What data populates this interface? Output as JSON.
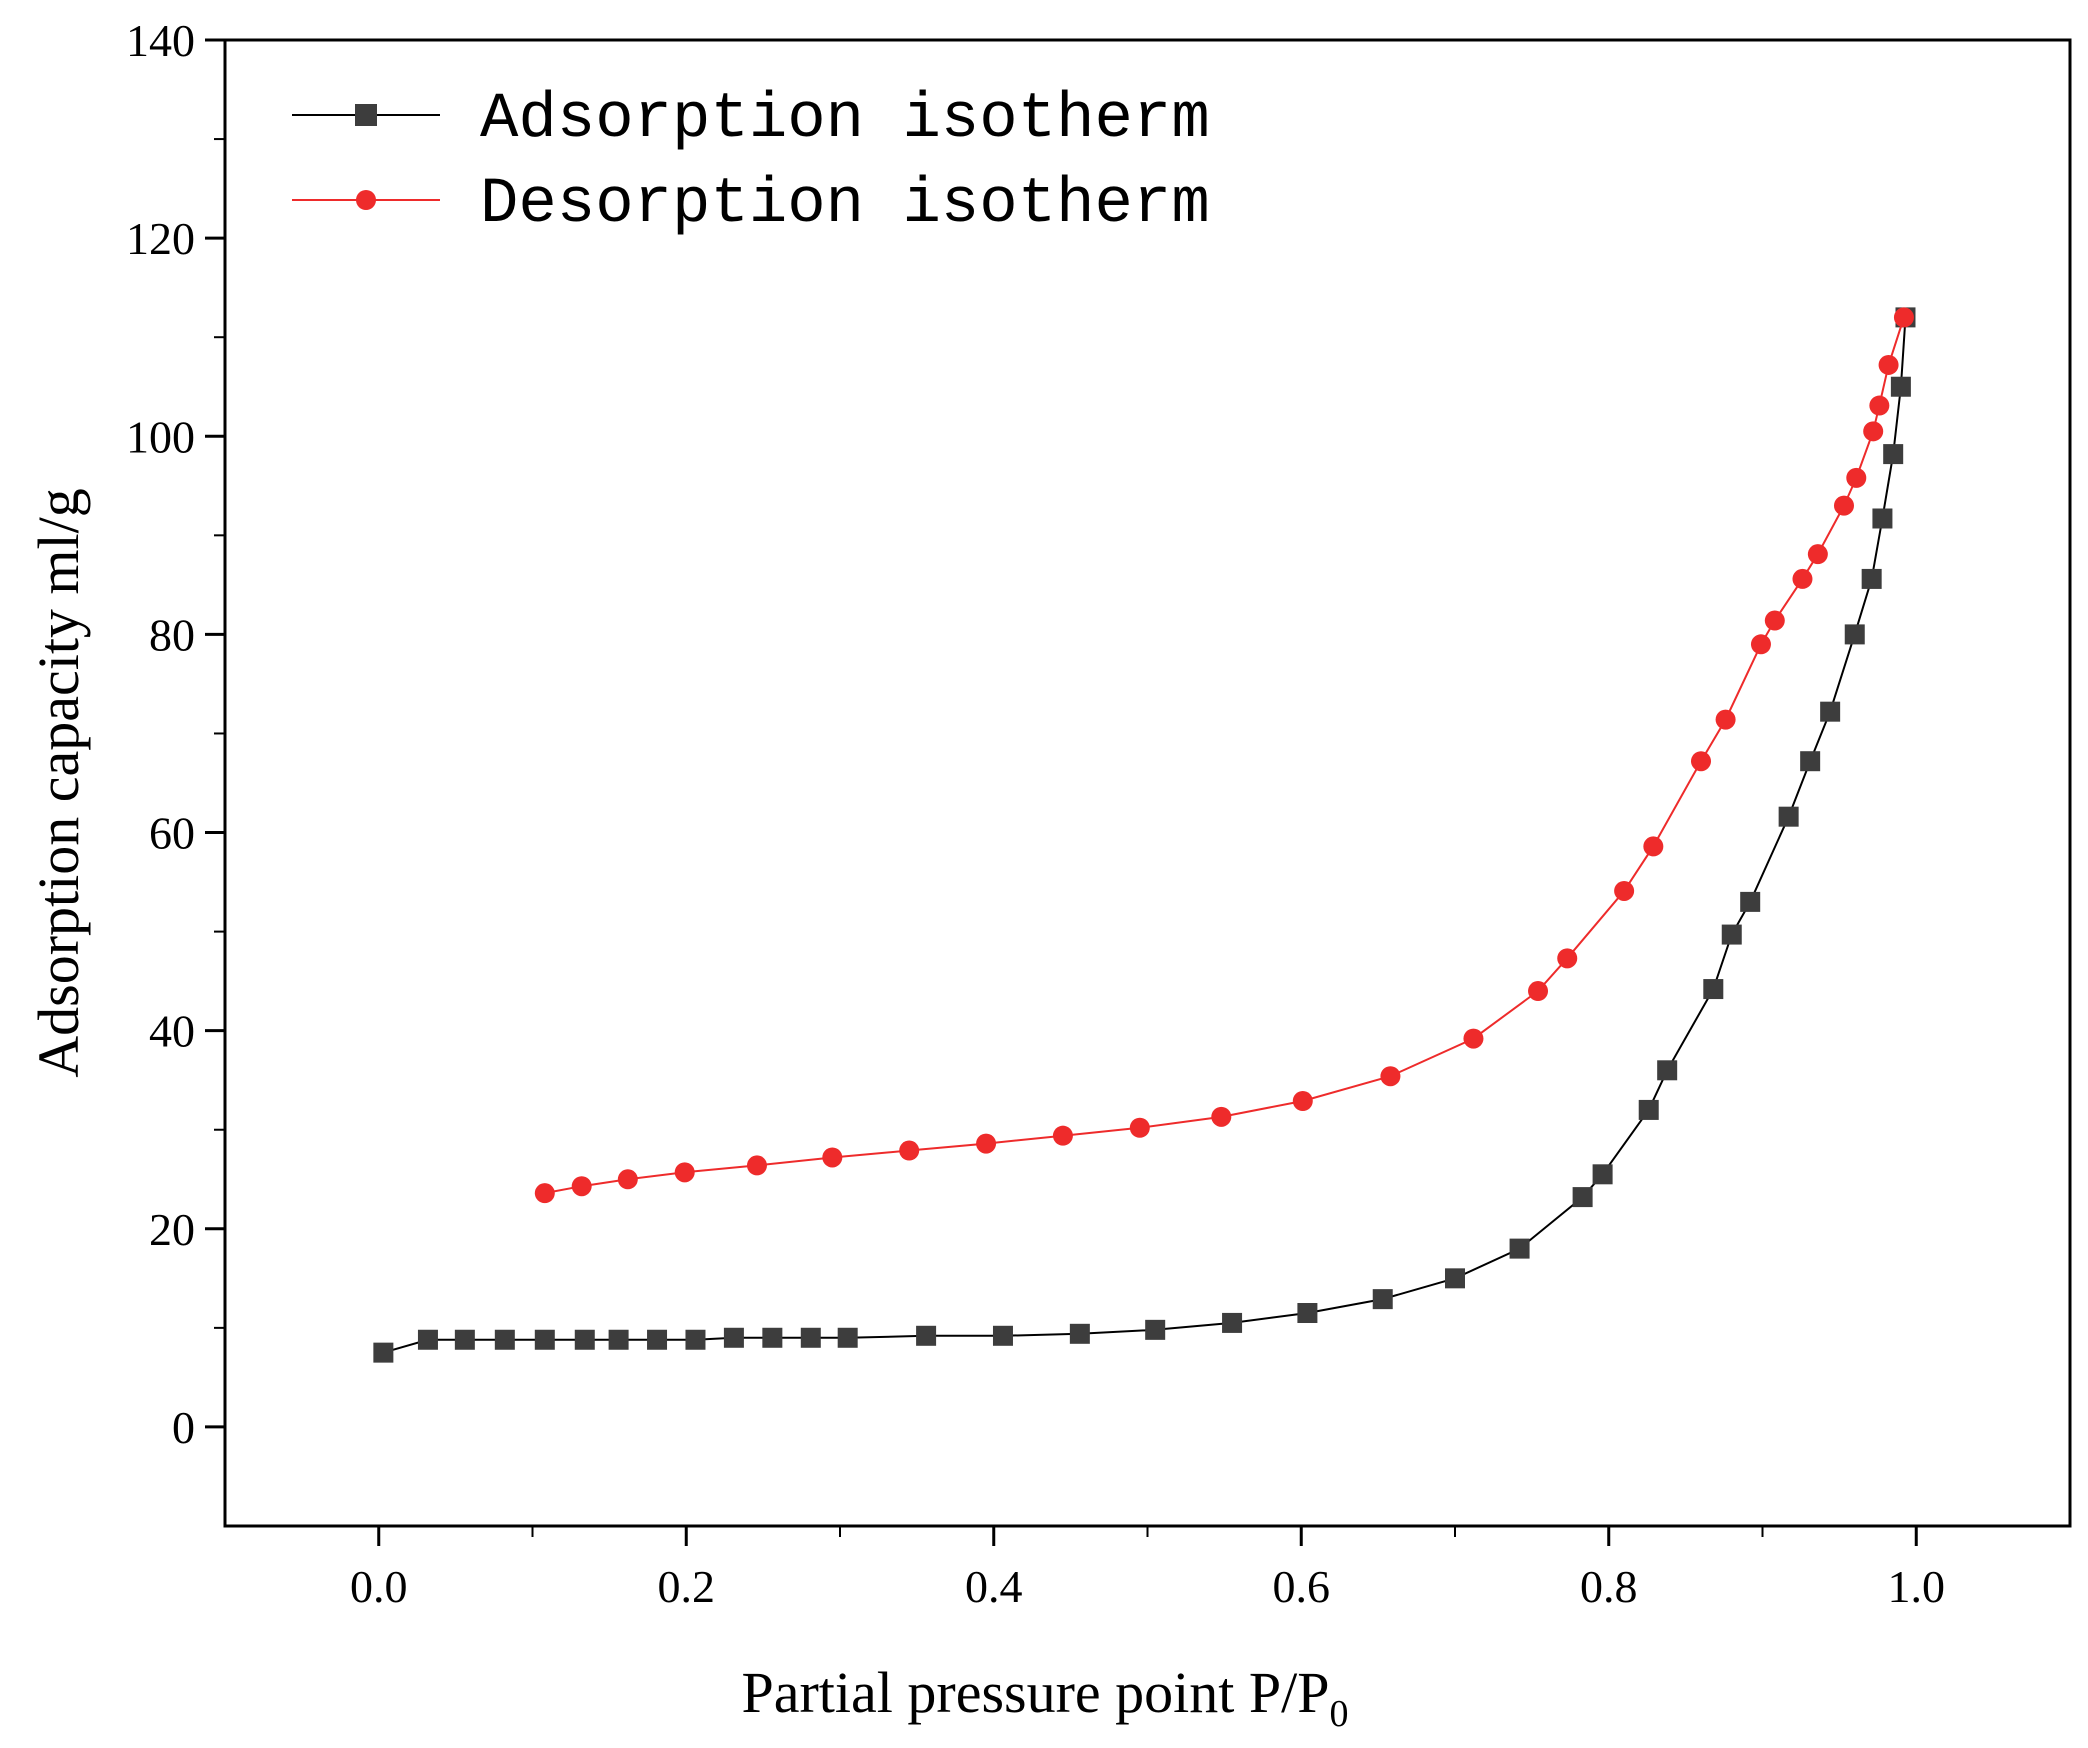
{
  "chart_data": {
    "type": "line",
    "xlabel": "Partial pressure point P/P",
    "xlabel_sub": "0",
    "ylabel": "Adsorption capacity ml/g",
    "xlim": [
      -0.1,
      1.1
    ],
    "ylim": [
      -10,
      140
    ],
    "x_ticks": [
      0.0,
      0.2,
      0.4,
      0.6,
      0.8,
      1.0
    ],
    "x_tick_labels": [
      "0.0",
      "0.2",
      "0.4",
      "0.6",
      "0.8",
      "1.0"
    ],
    "y_ticks": [
      0,
      20,
      40,
      60,
      80,
      100,
      120,
      140
    ],
    "y_tick_labels": [
      "0",
      "20",
      "40",
      "60",
      "80",
      "100",
      "120",
      "140"
    ],
    "grid": false,
    "legend_position": "top-left",
    "series": [
      {
        "name": "Adsorption isotherm",
        "color": "#3d3d3d",
        "line_color": "#000000",
        "marker": "square",
        "x": [
          0.003,
          0.032,
          0.056,
          0.082,
          0.108,
          0.134,
          0.156,
          0.181,
          0.206,
          0.231,
          0.256,
          0.281,
          0.305,
          0.356,
          0.406,
          0.456,
          0.505,
          0.555,
          0.604,
          0.653,
          0.7,
          0.742,
          0.783,
          0.796,
          0.826,
          0.838,
          0.868,
          0.88,
          0.892,
          0.917,
          0.931,
          0.944,
          0.96,
          0.971,
          0.978,
          0.985,
          0.99,
          0.993
        ],
        "y": [
          7.5,
          8.8,
          8.8,
          8.8,
          8.8,
          8.8,
          8.8,
          8.8,
          8.8,
          9.0,
          9.0,
          9.0,
          9.0,
          9.2,
          9.2,
          9.4,
          9.8,
          10.5,
          11.5,
          12.9,
          15.0,
          18.0,
          23.2,
          25.5,
          32.0,
          36.0,
          44.2,
          49.7,
          53.0,
          61.6,
          67.2,
          72.2,
          80.0,
          85.6,
          91.7,
          98.2,
          105.0,
          112.0
        ]
      },
      {
        "name": "Desorption isotherm",
        "color": "#ee2b2b",
        "line_color": "#ee2b2b",
        "marker": "circle",
        "x": [
          0.108,
          0.132,
          0.162,
          0.199,
          0.246,
          0.295,
          0.345,
          0.395,
          0.445,
          0.495,
          0.548,
          0.601,
          0.658,
          0.712,
          0.754,
          0.773,
          0.81,
          0.829,
          0.86,
          0.876,
          0.899,
          0.908,
          0.926,
          0.936,
          0.953,
          0.961,
          0.972,
          0.976,
          0.982,
          0.992
        ],
        "y": [
          23.6,
          24.3,
          25.0,
          25.7,
          26.4,
          27.2,
          27.9,
          28.6,
          29.4,
          30.2,
          31.3,
          32.9,
          35.4,
          39.2,
          44.0,
          47.3,
          54.1,
          58.6,
          67.2,
          71.4,
          79.0,
          81.4,
          85.6,
          88.1,
          93.0,
          95.8,
          100.5,
          103.1,
          107.2,
          112.0
        ]
      }
    ]
  }
}
